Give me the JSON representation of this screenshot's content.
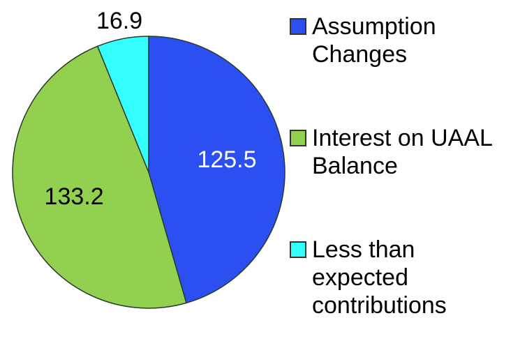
{
  "chart_data": {
    "type": "pie",
    "categories": [
      "Assumption Changes",
      "Interest on UAAL Balance",
      "Less than expected contributions"
    ],
    "values": [
      125.5,
      133.2,
      16.9
    ],
    "colors": [
      "#2b4ff0",
      "#92d050",
      "#33ffff"
    ],
    "label_colors": [
      "#ffffff",
      "#000000",
      "#000000"
    ],
    "legend": "right"
  }
}
